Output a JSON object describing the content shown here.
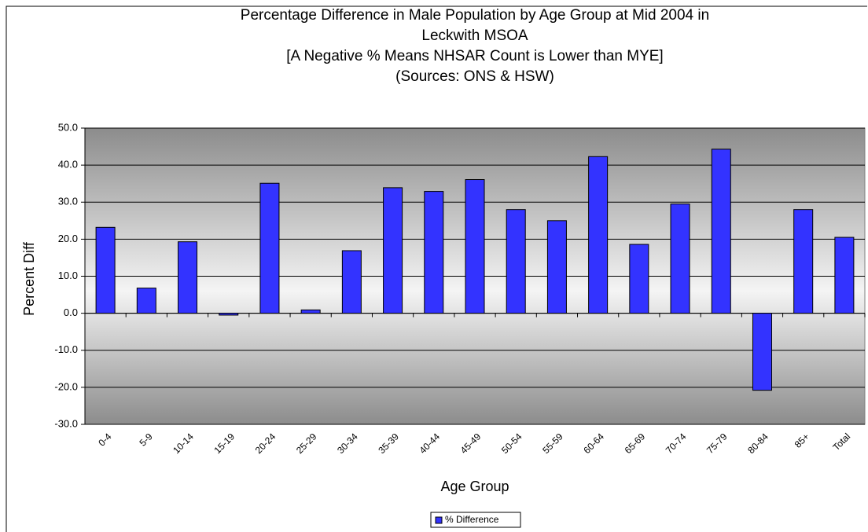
{
  "chart_data": {
    "type": "bar",
    "title": [
      "Percentage Difference in Male Population by Age Group at Mid 2004 in",
      "Leckwith MSOA",
      "[A Negative % Means NHSAR Count is Lower than MYE]",
      "(Sources: ONS & HSW)"
    ],
    "x_label": "Age Group",
    "y_label": "Percent Diff",
    "categories": [
      "0-4",
      "5-9",
      "10-14",
      "15-19",
      "20-24",
      "25-29",
      "30-34",
      "35-39",
      "40-44",
      "45-49",
      "50-54",
      "55-59",
      "60-64",
      "65-69",
      "70-74",
      "75-79",
      "80-84",
      "85+",
      "Total"
    ],
    "series": [
      {
        "name": "% Difference",
        "color": "#3333ff",
        "values": [
          23.2,
          6.8,
          19.3,
          -0.5,
          35.1,
          0.9,
          16.9,
          33.9,
          32.9,
          36.1,
          28.0,
          25.0,
          42.3,
          18.6,
          29.5,
          44.3,
          -20.8,
          28.0,
          20.5
        ]
      }
    ],
    "ylim": [
      -30,
      50
    ],
    "yticks": [
      {
        "value": -30,
        "label": "-30.0"
      },
      {
        "value": -20,
        "label": "-20.0"
      },
      {
        "value": -10,
        "label": "-10.0"
      },
      {
        "value": 0,
        "label": "0.0"
      },
      {
        "value": 10,
        "label": "10.0"
      },
      {
        "value": 20,
        "label": "20.0"
      },
      {
        "value": 30,
        "label": "30.0"
      },
      {
        "value": 40,
        "label": "40.0"
      },
      {
        "value": 50,
        "label": "50.0"
      }
    ],
    "grid": true,
    "legend": "bottom"
  }
}
